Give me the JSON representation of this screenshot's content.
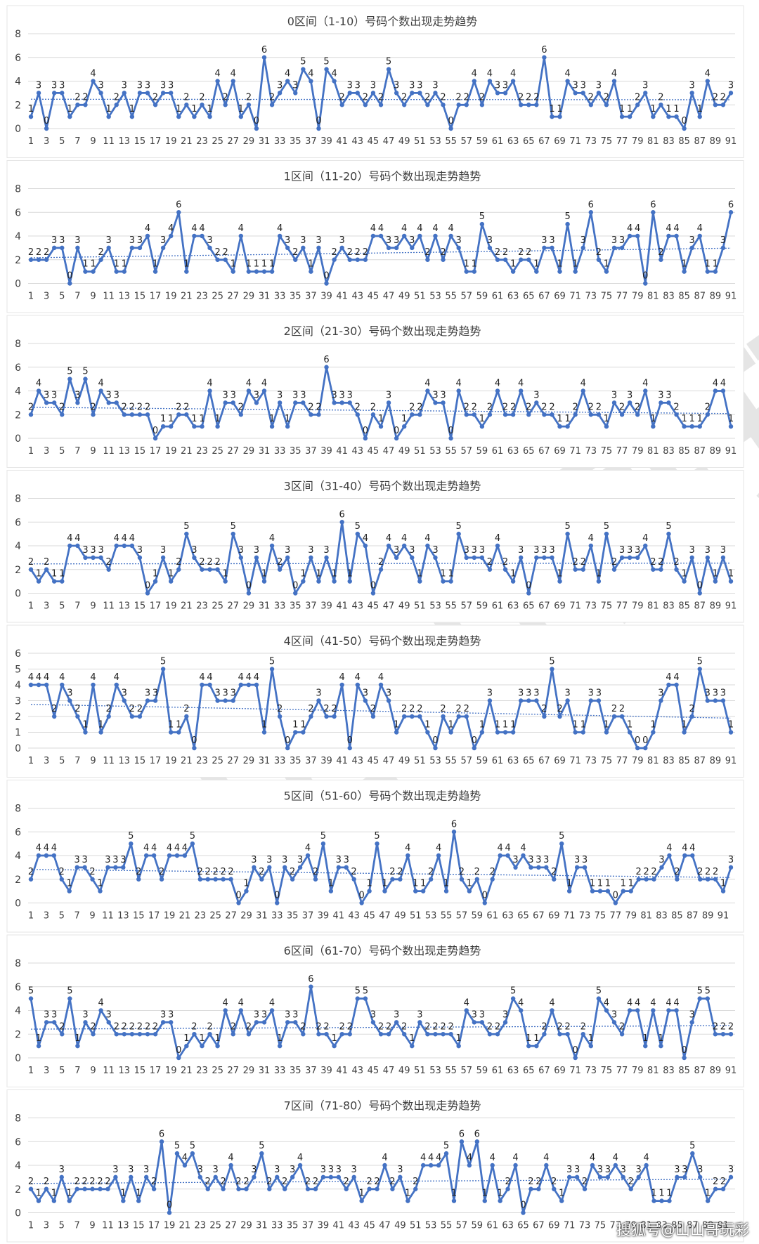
{
  "watermark": "山山哥玩彩",
  "footer": "搜狐号@山山哥玩彩",
  "colors": {
    "line": "#4472C4",
    "trend": "#4472C4",
    "grid": "#D9D9D9",
    "text": "#404040"
  },
  "chart_data": [
    {
      "type": "line",
      "title": "0区间（1-10）号码个数出现走势趋势",
      "ylim": [
        0,
        8
      ],
      "yticks": [
        0,
        2,
        4,
        6,
        8
      ],
      "xticks": [
        1,
        3,
        5,
        7,
        9,
        11,
        13,
        15,
        17,
        19,
        21,
        23,
        25,
        27,
        29,
        31,
        33,
        35,
        37,
        39,
        41,
        43,
        45,
        47,
        49,
        51,
        53,
        55,
        57,
        59,
        61,
        63,
        65,
        67,
        69,
        71,
        73,
        75,
        77,
        79,
        81,
        83,
        85,
        87,
        89,
        91
      ],
      "trendline": true,
      "values": [
        1,
        3,
        0,
        3,
        3,
        1,
        2,
        2,
        4,
        3,
        1,
        2,
        3,
        1,
        3,
        3,
        2,
        3,
        3,
        1,
        2,
        1,
        2,
        1,
        4,
        2,
        4,
        1,
        2,
        0,
        6,
        2,
        3,
        4,
        3,
        5,
        4,
        0,
        5,
        4,
        2,
        3,
        3,
        2,
        3,
        2,
        5,
        3,
        2,
        3,
        3,
        2,
        3,
        2,
        0,
        2,
        2,
        4,
        2,
        4,
        3,
        3,
        4,
        2,
        2,
        2,
        6,
        1,
        1,
        4,
        3,
        3,
        2,
        3,
        2,
        4,
        1,
        1,
        2,
        3,
        1,
        2,
        1,
        1,
        0,
        3,
        1,
        4,
        2,
        2,
        3
      ]
    },
    {
      "type": "line",
      "title": "1区间（11-20）号码个数出现走势趋势",
      "ylim": [
        0,
        8
      ],
      "yticks": [
        0,
        2,
        4,
        6,
        8
      ],
      "xticks": [
        1,
        3,
        5,
        7,
        9,
        11,
        13,
        15,
        17,
        19,
        21,
        23,
        25,
        27,
        29,
        31,
        33,
        35,
        37,
        39,
        41,
        43,
        45,
        47,
        49,
        51,
        53,
        55,
        57,
        59,
        61,
        63,
        65,
        67,
        69,
        71,
        73,
        75,
        77,
        79,
        81,
        83,
        85,
        87,
        89,
        91
      ],
      "trendline": true,
      "values": [
        2,
        2,
        2,
        3,
        3,
        0,
        3,
        1,
        1,
        2,
        3,
        1,
        1,
        3,
        3,
        4,
        1,
        3,
        4,
        6,
        1,
        4,
        4,
        3,
        2,
        2,
        1,
        4,
        1,
        1,
        1,
        1,
        4,
        3,
        2,
        3,
        1,
        3,
        0,
        2,
        3,
        2,
        2,
        2,
        4,
        4,
        3,
        3,
        4,
        3,
        4,
        2,
        4,
        2,
        4,
        3,
        1,
        1,
        5,
        3,
        2,
        2,
        1,
        2,
        2,
        1,
        3,
        3,
        1,
        5,
        1,
        3,
        6,
        2,
        1,
        3,
        3,
        4,
        4,
        0,
        6,
        2,
        4,
        4,
        1,
        3,
        4,
        1,
        1,
        3,
        6
      ]
    },
    {
      "type": "line",
      "title": "2区间（21-30）号码个数出现走势趋势",
      "ylim": [
        0,
        8
      ],
      "yticks": [
        0,
        2,
        4,
        6,
        8
      ],
      "xticks": [
        1,
        3,
        5,
        7,
        9,
        11,
        13,
        15,
        17,
        19,
        21,
        23,
        25,
        27,
        29,
        31,
        33,
        35,
        37,
        39,
        41,
        43,
        45,
        47,
        49,
        51,
        53,
        55,
        57,
        59,
        61,
        63,
        65,
        67,
        69,
        71,
        73,
        75,
        77,
        79,
        81,
        83,
        85,
        87,
        89,
        91
      ],
      "trendline": true,
      "values": [
        2,
        4,
        3,
        3,
        2,
        5,
        3,
        5,
        2,
        4,
        3,
        3,
        2,
        2,
        2,
        2,
        0,
        1,
        1,
        2,
        2,
        1,
        1,
        4,
        1,
        3,
        3,
        2,
        4,
        3,
        4,
        1,
        3,
        1,
        3,
        3,
        2,
        2,
        6,
        3,
        3,
        3,
        2,
        0,
        2,
        1,
        3,
        0,
        1,
        2,
        2,
        4,
        3,
        3,
        0,
        4,
        2,
        2,
        1,
        2,
        4,
        2,
        2,
        4,
        2,
        3,
        2,
        2,
        1,
        1,
        2,
        4,
        2,
        2,
        1,
        3,
        2,
        3,
        2,
        4,
        1,
        3,
        3,
        2,
        1,
        1,
        1,
        2,
        4,
        4,
        1
      ]
    },
    {
      "type": "line",
      "title": "3区间（31-40）号码个数出现走势趋势",
      "ylim": [
        0,
        8
      ],
      "yticks": [
        0,
        2,
        4,
        6,
        8
      ],
      "xticks": [
        1,
        3,
        5,
        7,
        9,
        11,
        13,
        15,
        17,
        19,
        21,
        23,
        25,
        27,
        29,
        31,
        33,
        35,
        37,
        39,
        41,
        43,
        45,
        47,
        49,
        51,
        53,
        55,
        57,
        59,
        61,
        63,
        65,
        67,
        69,
        71,
        73,
        75,
        77,
        79,
        81,
        83,
        85,
        87,
        89,
        91
      ],
      "trendline": true,
      "values": [
        2,
        1,
        2,
        1,
        1,
        4,
        4,
        3,
        3,
        3,
        2,
        4,
        4,
        4,
        3,
        0,
        1,
        3,
        1,
        2,
        5,
        3,
        2,
        2,
        2,
        1,
        5,
        3,
        0,
        3,
        1,
        4,
        2,
        3,
        0,
        1,
        3,
        1,
        3,
        1,
        6,
        1,
        5,
        4,
        0,
        2,
        4,
        3,
        4,
        3,
        1,
        4,
        3,
        1,
        1,
        5,
        3,
        3,
        3,
        2,
        4,
        2,
        1,
        3,
        0,
        3,
        3,
        3,
        1,
        5,
        2,
        2,
        4,
        1,
        5,
        2,
        3,
        3,
        3,
        4,
        2,
        2,
        5,
        2,
        1,
        3,
        0,
        3,
        1,
        3,
        1
      ]
    },
    {
      "type": "line",
      "title": "4区间（41-50）号码个数出现走势趋势",
      "ylim": [
        0,
        6
      ],
      "yticks": [
        0,
        1,
        2,
        3,
        4,
        5,
        6
      ],
      "xticks": [
        1,
        3,
        5,
        7,
        9,
        11,
        13,
        15,
        17,
        19,
        21,
        23,
        25,
        27,
        29,
        31,
        33,
        35,
        37,
        39,
        41,
        43,
        45,
        47,
        49,
        51,
        53,
        55,
        57,
        59,
        61,
        63,
        65,
        67,
        69,
        71,
        73,
        75,
        77,
        79,
        81,
        83,
        85,
        87,
        89,
        91
      ],
      "trendline": true,
      "values": [
        4,
        4,
        4,
        2,
        4,
        3,
        2,
        1,
        4,
        1,
        2,
        4,
        3,
        2,
        2,
        3,
        3,
        5,
        1,
        1,
        2,
        0,
        4,
        4,
        3,
        3,
        3,
        4,
        4,
        4,
        1,
        5,
        2,
        0,
        1,
        1,
        2,
        3,
        2,
        2,
        4,
        0,
        4,
        3,
        2,
        4,
        3,
        1,
        2,
        2,
        2,
        1,
        0,
        2,
        1,
        2,
        2,
        0,
        1,
        3,
        1,
        1,
        1,
        3,
        3,
        3,
        2,
        5,
        2,
        3,
        1,
        1,
        3,
        3,
        1,
        2,
        2,
        1,
        0,
        0,
        1,
        3,
        4,
        4,
        1,
        2,
        5,
        3,
        3,
        3,
        1
      ]
    },
    {
      "type": "line",
      "title": "5区间（51-60）号码个数出现走势趋势",
      "ylim": [
        0,
        8
      ],
      "yticks": [
        0,
        2,
        4,
        6,
        8
      ],
      "xticks": [
        1,
        3,
        5,
        7,
        9,
        11,
        13,
        15,
        17,
        19,
        21,
        23,
        25,
        27,
        29,
        31,
        33,
        35,
        37,
        39,
        41,
        43,
        45,
        47,
        49,
        51,
        53,
        55,
        57,
        59,
        61,
        63,
        65,
        67,
        69,
        71,
        73,
        75,
        77,
        79,
        81,
        83,
        85,
        87,
        89,
        91
      ],
      "trendline": true,
      "values": [
        2,
        4,
        4,
        4,
        2,
        1,
        3,
        3,
        2,
        1,
        3,
        3,
        3,
        5,
        2,
        4,
        4,
        2,
        4,
        4,
        4,
        5,
        2,
        2,
        2,
        2,
        2,
        0,
        1,
        3,
        2,
        3,
        0,
        3,
        2,
        3,
        4,
        2,
        5,
        1,
        3,
        3,
        2,
        0,
        1,
        5,
        1,
        2,
        2,
        4,
        1,
        1,
        2,
        4,
        1,
        6,
        2,
        1,
        2,
        0,
        2,
        4,
        4,
        3,
        4,
        3,
        3,
        3,
        2,
        5,
        1,
        3,
        3,
        1,
        1,
        1,
        0,
        1,
        1,
        2,
        2,
        2,
        3,
        4,
        2,
        4,
        4,
        2,
        2,
        2,
        1,
        3
      ]
    },
    {
      "type": "line",
      "title": "6区间（61-70）号码个数出现走势趋势",
      "ylim": [
        0,
        8
      ],
      "yticks": [
        0,
        2,
        4,
        6,
        8
      ],
      "xticks": [
        1,
        3,
        5,
        7,
        9,
        11,
        13,
        15,
        17,
        19,
        21,
        23,
        25,
        27,
        29,
        31,
        33,
        35,
        37,
        39,
        41,
        43,
        45,
        47,
        49,
        51,
        53,
        55,
        57,
        59,
        61,
        63,
        65,
        67,
        69,
        71,
        73,
        75,
        77,
        79,
        81,
        83,
        85,
        87,
        89,
        91
      ],
      "trendline": true,
      "values": [
        5,
        1,
        3,
        3,
        2,
        5,
        1,
        3,
        2,
        4,
        3,
        2,
        2,
        2,
        2,
        2,
        2,
        3,
        3,
        0,
        1,
        2,
        1,
        2,
        1,
        4,
        2,
        4,
        2,
        3,
        3,
        4,
        1,
        3,
        3,
        2,
        6,
        2,
        2,
        1,
        2,
        2,
        5,
        5,
        3,
        2,
        2,
        3,
        2,
        1,
        3,
        2,
        2,
        2,
        2,
        1,
        4,
        3,
        3,
        2,
        2,
        3,
        5,
        4,
        1,
        1,
        2,
        4,
        2,
        2,
        0,
        2,
        1,
        5,
        4,
        3,
        2,
        4,
        4,
        1,
        4,
        1,
        4,
        4,
        0,
        3,
        5,
        5,
        2,
        2,
        2
      ]
    },
    {
      "type": "line",
      "title": "7区间（71-80）号码个数出现走势趋势",
      "ylim": [
        0,
        8
      ],
      "yticks": [
        0,
        2,
        4,
        6,
        8
      ],
      "xticks": [
        1,
        3,
        5,
        7,
        9,
        11,
        13,
        15,
        17,
        19,
        21,
        23,
        25,
        27,
        29,
        31,
        33,
        35,
        37,
        39,
        41,
        43,
        45,
        47,
        49,
        51,
        53,
        55,
        57,
        59,
        61,
        63,
        65,
        67,
        69,
        71,
        73,
        75,
        77,
        79,
        81,
        83,
        85,
        87,
        89,
        91
      ],
      "trendline": true,
      "values": [
        2,
        1,
        2,
        1,
        3,
        1,
        2,
        2,
        2,
        2,
        2,
        3,
        1,
        3,
        1,
        3,
        2,
        6,
        0,
        5,
        4,
        5,
        3,
        2,
        3,
        2,
        4,
        2,
        2,
        3,
        5,
        2,
        3,
        2,
        3,
        4,
        2,
        2,
        3,
        3,
        3,
        2,
        3,
        1,
        2,
        2,
        4,
        2,
        3,
        1,
        2,
        4,
        4,
        4,
        5,
        1,
        6,
        4,
        6,
        1,
        4,
        1,
        2,
        4,
        0,
        2,
        2,
        4,
        2,
        1,
        3,
        3,
        2,
        4,
        3,
        3,
        4,
        3,
        2,
        3,
        4,
        1,
        1,
        1,
        3,
        3,
        5,
        3,
        1,
        2,
        2,
        3
      ]
    }
  ]
}
